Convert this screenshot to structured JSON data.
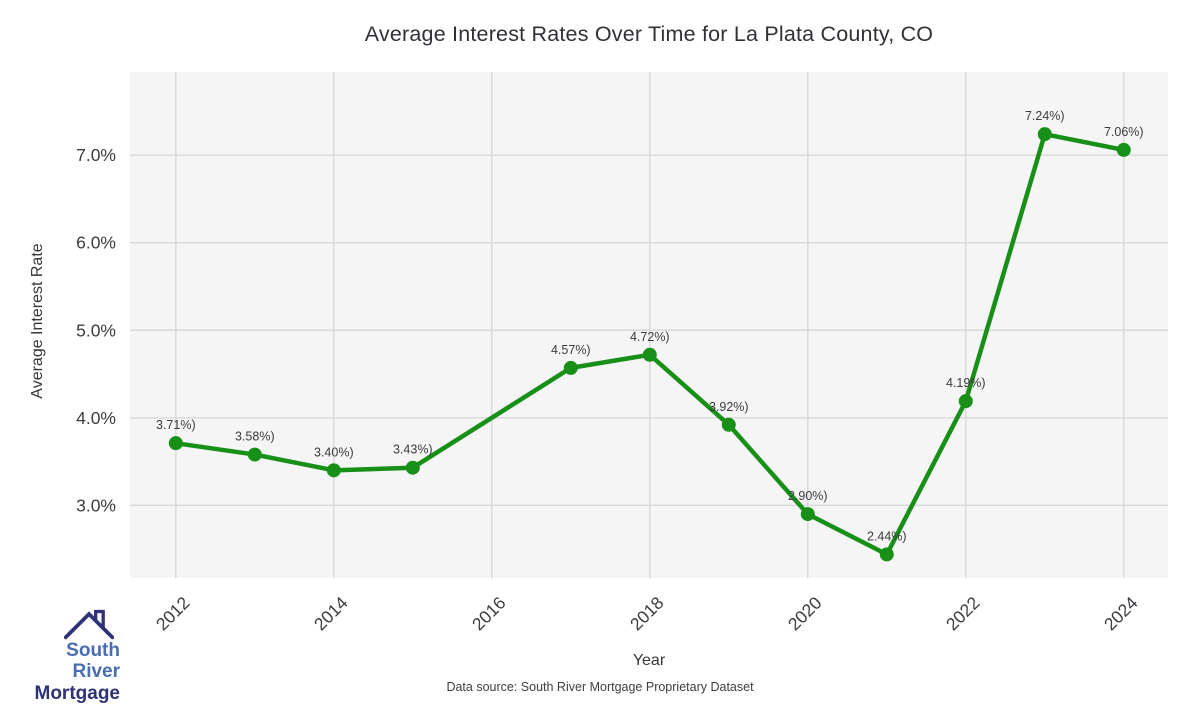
{
  "chart_data": {
    "type": "line",
    "title": "Average Interest Rates Over Time for La Plata County, CO",
    "xlabel": "Year",
    "ylabel": "Average Interest Rate",
    "x": [
      2012,
      2013,
      2014,
      2015,
      2017,
      2018,
      2019,
      2020,
      2021,
      2022,
      2023,
      2024
    ],
    "values": [
      3.71,
      3.58,
      3.4,
      3.43,
      4.57,
      4.72,
      3.92,
      2.9,
      2.44,
      4.19,
      7.24,
      7.06
    ],
    "point_labels": [
      "3.71%)",
      "3.58%)",
      "3.40%)",
      "3.43%)",
      "4.57%)",
      "4.72%)",
      "3.92%)",
      "2.90%)",
      "2.44%)",
      "4.19%)",
      "7.24%)",
      "7.06%)"
    ],
    "x_ticks": [
      2012,
      2014,
      2016,
      2018,
      2020,
      2022,
      2024
    ],
    "y_ticks": [
      3,
      4,
      5,
      6,
      7
    ],
    "y_tick_labels": [
      "3.0%",
      "4.0%",
      "5.0%",
      "6.0%",
      "7.0%"
    ],
    "xlim": [
      2011.42,
      2024.56
    ],
    "ylim": [
      2.17,
      7.95
    ],
    "grid": true,
    "legend_position": "none",
    "line_color": "#189018",
    "marker_color": "#189018",
    "plot_bg_color": "#f5f5f5",
    "grid_color": "#d8d8d8",
    "tick_color": "#3a3c40",
    "annotation_color": "#3a3c40"
  },
  "logo": {
    "line1": "South River",
    "line2": "Mortgage",
    "line1_color": "#4a6cb2",
    "line2_color": "#2e3277",
    "icon_color": "#2e3277",
    "icon": "house-roof-icon"
  },
  "footer": {
    "source_text": "Data source: South River Mortgage Proprietary Dataset"
  }
}
